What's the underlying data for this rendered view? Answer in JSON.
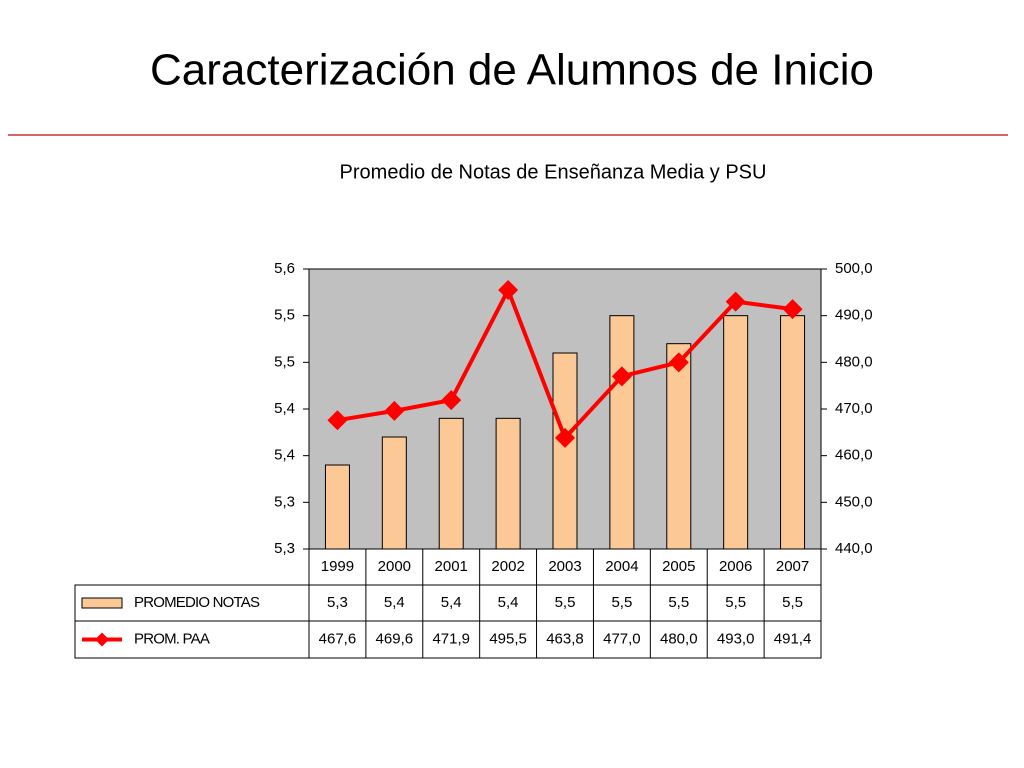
{
  "slide_title": "Caracterización de Alumnos de Inicio",
  "chart_data": {
    "type": "bar",
    "title": "Promedio de Notas de Enseñanza Media y PSU",
    "categories": [
      "1999",
      "2000",
      "2001",
      "2002",
      "2003",
      "2004",
      "2005",
      "2006",
      "2007"
    ],
    "series": [
      {
        "name": "PROMEDIO NOTAS",
        "color": "#fbc896",
        "type": "bar",
        "values": [
          5.34,
          5.37,
          5.39,
          5.39,
          5.46,
          5.5,
          5.47,
          5.5,
          5.5
        ],
        "value_labels": [
          "5,3",
          "5,4",
          "5,4",
          "5,4",
          "5,5",
          "5,5",
          "5,5",
          "5,5",
          "5,5"
        ]
      },
      {
        "name": "PROM. PAA",
        "color": "#ff0000",
        "type": "line",
        "axis": "y2",
        "values": [
          467.6,
          469.6,
          471.9,
          495.5,
          463.8,
          477.0,
          480.0,
          493.0,
          491.4
        ],
        "value_labels": [
          "467,6",
          "469,6",
          "471,9",
          "495,5",
          "463,8",
          "477,0",
          "480,0",
          "493,0",
          "491,4"
        ]
      }
    ],
    "ylim": [
      5.25,
      5.55
    ],
    "yticks": [
      {
        "value": 5.25,
        "label": "5,3"
      },
      {
        "value": 5.3,
        "label": "5,3"
      },
      {
        "value": 5.35,
        "label": "5,4"
      },
      {
        "value": 5.4,
        "label": "5,4"
      },
      {
        "value": 5.45,
        "label": "5,5"
      },
      {
        "value": 5.5,
        "label": "5,5"
      },
      {
        "value": 5.55,
        "label": "5,6"
      }
    ],
    "y2lim": [
      440,
      500
    ],
    "y2ticks": [
      {
        "value": 440,
        "label": "440,0"
      },
      {
        "value": 450,
        "label": "450,0"
      },
      {
        "value": 460,
        "label": "460,0"
      },
      {
        "value": 470,
        "label": "470,0"
      },
      {
        "value": 480,
        "label": "480,0"
      },
      {
        "value": 490,
        "label": "490,0"
      },
      {
        "value": 500,
        "label": "500,0"
      }
    ],
    "grid": false,
    "plot_background": "#c0c0c0"
  }
}
